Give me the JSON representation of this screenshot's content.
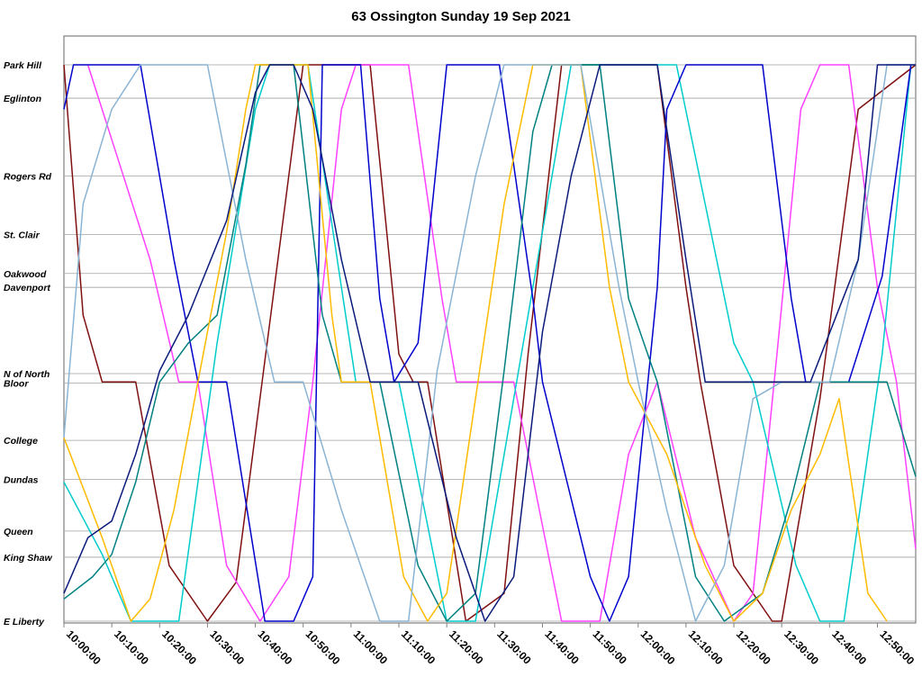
{
  "chart_data": {
    "type": "line",
    "title": "63 Ossington Sunday 19 Sep 2021",
    "grid": true,
    "legend": "none",
    "x_range": [
      "10:00:00",
      "12:58:00"
    ],
    "x_ticks": [
      "10:00:00",
      "10:10:00",
      "10:20:00",
      "10:30:00",
      "10:40:00",
      "10:50:00",
      "11:00:00",
      "11:10:00",
      "11:20:00",
      "11:30:00",
      "11:40:00",
      "11:50:00",
      "12:00:00",
      "12:10:00",
      "12:20:00",
      "12:30:00",
      "12:40:00",
      "12:50:00"
    ],
    "y_stops": [
      {
        "label": "Park Hill",
        "pos": 0
      },
      {
        "label": "Eglinton",
        "pos": 6
      },
      {
        "label": "Rogers Rd",
        "pos": 20
      },
      {
        "label": "St. Clair",
        "pos": 30.5
      },
      {
        "label": "Oakwood",
        "pos": 37.5
      },
      {
        "label": "Davenport",
        "pos": 40
      },
      {
        "label": "N of North",
        "pos": 55.5
      },
      {
        "label": "Bloor",
        "pos": 57.2
      },
      {
        "label": "College",
        "pos": 67.5
      },
      {
        "label": "Dundas",
        "pos": 74.5
      },
      {
        "label": "Queen",
        "pos": 83.8
      },
      {
        "label": "King Shaw",
        "pos": 88.5
      },
      {
        "label": "E Liberty",
        "pos": 100
      }
    ],
    "series": [
      {
        "color": "#7f1010",
        "points": [
          [
            0,
            0
          ],
          [
            4,
            45
          ],
          [
            8,
            57
          ],
          [
            15,
            57
          ],
          [
            22,
            90
          ],
          [
            30,
            100
          ],
          [
            36,
            93
          ],
          [
            50,
            0
          ],
          [
            64,
            0
          ],
          [
            70,
            52
          ],
          [
            73,
            57
          ],
          [
            76,
            57
          ],
          [
            84,
            100
          ],
          [
            92,
            95
          ],
          [
            97,
            52
          ],
          [
            104,
            0
          ],
          [
            124,
            0
          ],
          [
            130,
            40
          ],
          [
            133,
            57
          ],
          [
            140,
            90
          ],
          [
            148,
            100
          ],
          [
            150,
            100
          ],
          [
            158,
            60
          ],
          [
            166,
            8
          ],
          [
            178,
            0
          ]
        ]
      },
      {
        "color": "#ff40ff",
        "points": [
          [
            5,
            0
          ],
          [
            18,
            35
          ],
          [
            24,
            57
          ],
          [
            28,
            57
          ],
          [
            34,
            90
          ],
          [
            41,
            100
          ],
          [
            47,
            92
          ],
          [
            52,
            57
          ],
          [
            58,
            8
          ],
          [
            61,
            0
          ],
          [
            72,
            0
          ],
          [
            79,
            42
          ],
          [
            82,
            57
          ],
          [
            94,
            57
          ],
          [
            104,
            100
          ],
          [
            112,
            100
          ],
          [
            118,
            70
          ],
          [
            124,
            57
          ],
          [
            132,
            85
          ],
          [
            140,
            100
          ],
          [
            144,
            95
          ],
          [
            149,
            52
          ],
          [
            154,
            8
          ],
          [
            158,
            0
          ],
          [
            164,
            0
          ],
          [
            170,
            40
          ],
          [
            174,
            57
          ],
          [
            178,
            87
          ]
        ]
      },
      {
        "color": "#00cccc",
        "points": [
          [
            0,
            75
          ],
          [
            8,
            88
          ],
          [
            14,
            100
          ],
          [
            24,
            100
          ],
          [
            32,
            50
          ],
          [
            40,
            8
          ],
          [
            43,
            0
          ],
          [
            51,
            0
          ],
          [
            58,
            40
          ],
          [
            61,
            57
          ],
          [
            70,
            57
          ],
          [
            80,
            100
          ],
          [
            86,
            100
          ],
          [
            95,
            55
          ],
          [
            106,
            0
          ],
          [
            128,
            0
          ],
          [
            140,
            50
          ],
          [
            144,
            57
          ],
          [
            153,
            90
          ],
          [
            158,
            100
          ],
          [
            163,
            100
          ],
          [
            171,
            52
          ],
          [
            177,
            0
          ]
        ]
      },
      {
        "color": "#0000cc",
        "points": [
          [
            0,
            8
          ],
          [
            2,
            0
          ],
          [
            16,
            0
          ],
          [
            23,
            35
          ],
          [
            28,
            57
          ],
          [
            34,
            57
          ],
          [
            42,
            100
          ],
          [
            48,
            100
          ],
          [
            52,
            92
          ],
          [
            54,
            0
          ],
          [
            62,
            0
          ],
          [
            66,
            42
          ],
          [
            69,
            57
          ],
          [
            74,
            50
          ],
          [
            80,
            0
          ],
          [
            91,
            0
          ],
          [
            98,
            42
          ],
          [
            100,
            57
          ],
          [
            110,
            92
          ],
          [
            114,
            100
          ],
          [
            118,
            92
          ],
          [
            124,
            40
          ],
          [
            126,
            8
          ],
          [
            130,
            0
          ],
          [
            146,
            0
          ],
          [
            152,
            42
          ],
          [
            155,
            57
          ],
          [
            164,
            57
          ],
          [
            171,
            38
          ],
          [
            177,
            0
          ]
        ]
      },
      {
        "color": "#008080",
        "points": [
          [
            0,
            96
          ],
          [
            6,
            92
          ],
          [
            10,
            88
          ],
          [
            15,
            75
          ],
          [
            20,
            57
          ],
          [
            26,
            50
          ],
          [
            32,
            45
          ],
          [
            38,
            18
          ],
          [
            41,
            0
          ],
          [
            48,
            0
          ],
          [
            54,
            45
          ],
          [
            58,
            57
          ],
          [
            66,
            57
          ],
          [
            74,
            90
          ],
          [
            80,
            100
          ],
          [
            86,
            95
          ],
          [
            92,
            55
          ],
          [
            98,
            12
          ],
          [
            102,
            0
          ],
          [
            112,
            0
          ],
          [
            118,
            42
          ],
          [
            124,
            57
          ],
          [
            132,
            92
          ],
          [
            138,
            100
          ],
          [
            146,
            95
          ],
          [
            152,
            78
          ],
          [
            158,
            57
          ],
          [
            172,
            57
          ],
          [
            178,
            74
          ]
        ]
      },
      {
        "color": "#ffbb00",
        "points": [
          [
            0,
            67
          ],
          [
            8,
            85
          ],
          [
            14,
            100
          ],
          [
            18,
            96
          ],
          [
            23,
            80
          ],
          [
            28,
            57
          ],
          [
            34,
            30
          ],
          [
            38,
            8
          ],
          [
            40,
            0
          ],
          [
            51,
            0
          ],
          [
            56,
            45
          ],
          [
            58,
            57
          ],
          [
            64,
            57
          ],
          [
            71,
            92
          ],
          [
            76,
            100
          ],
          [
            80,
            95
          ],
          [
            86,
            60
          ],
          [
            92,
            25
          ],
          [
            98,
            0
          ],
          [
            108,
            0
          ],
          [
            114,
            40
          ],
          [
            118,
            57
          ],
          [
            126,
            70
          ],
          [
            134,
            90
          ],
          [
            140,
            100
          ],
          [
            146,
            95
          ],
          [
            152,
            80
          ],
          [
            158,
            70
          ],
          [
            162,
            60
          ],
          [
            168,
            95
          ],
          [
            172,
            100
          ]
        ]
      },
      {
        "color": "#8ab4d4",
        "points": [
          [
            0,
            67
          ],
          [
            4,
            25
          ],
          [
            10,
            8
          ],
          [
            16,
            0
          ],
          [
            30,
            0
          ],
          [
            38,
            35
          ],
          [
            44,
            57
          ],
          [
            50,
            57
          ],
          [
            58,
            80
          ],
          [
            66,
            100
          ],
          [
            72,
            100
          ],
          [
            78,
            55
          ],
          [
            86,
            20
          ],
          [
            92,
            0
          ],
          [
            108,
            0
          ],
          [
            116,
            40
          ],
          [
            120,
            57
          ],
          [
            126,
            80
          ],
          [
            132,
            100
          ],
          [
            138,
            90
          ],
          [
            144,
            60
          ],
          [
            150,
            57
          ],
          [
            160,
            57
          ],
          [
            166,
            35
          ],
          [
            172,
            0
          ],
          [
            178,
            0
          ]
        ]
      },
      {
        "color": "#0a1a7a",
        "points": [
          [
            0,
            95
          ],
          [
            5,
            85
          ],
          [
            10,
            82
          ],
          [
            15,
            70
          ],
          [
            20,
            55
          ],
          [
            26,
            45
          ],
          [
            34,
            28
          ],
          [
            40,
            5
          ],
          [
            43,
            0
          ],
          [
            48,
            0
          ],
          [
            52,
            8
          ],
          [
            58,
            35
          ],
          [
            64,
            57
          ],
          [
            74,
            57
          ],
          [
            82,
            85
          ],
          [
            88,
            100
          ],
          [
            94,
            92
          ],
          [
            100,
            48
          ],
          [
            106,
            20
          ],
          [
            112,
            0
          ],
          [
            124,
            0
          ],
          [
            130,
            35
          ],
          [
            134,
            57
          ],
          [
            146,
            57
          ],
          [
            156,
            57
          ],
          [
            166,
            35
          ],
          [
            170,
            0
          ],
          [
            178,
            0
          ]
        ]
      }
    ]
  }
}
